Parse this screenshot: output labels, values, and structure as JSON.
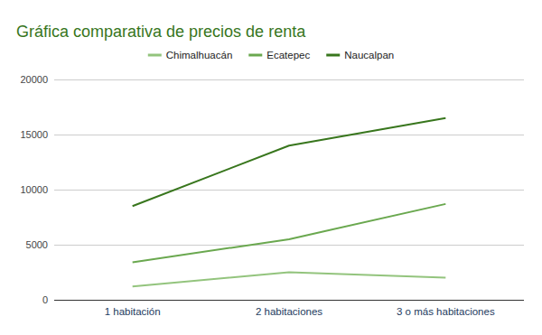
{
  "chart_data": {
    "type": "line",
    "title": "Gráfica comparativa de precios de renta",
    "categories": [
      "1 habitación",
      "2 habitaciones",
      "3 o más habitaciones"
    ],
    "series": [
      {
        "name": "Chimalhuacán",
        "color": "#93c47d",
        "values": [
          1200,
          2500,
          2000
        ]
      },
      {
        "name": "Ecatepec",
        "color": "#6aa84f",
        "values": [
          3400,
          5500,
          8700
        ]
      },
      {
        "name": "Naucalpan",
        "color": "#38761d",
        "values": [
          8500,
          14000,
          16500
        ]
      }
    ],
    "ylim": [
      0,
      20000
    ],
    "yticks": [
      0,
      5000,
      10000,
      15000,
      20000
    ],
    "grid": true,
    "legend": "top"
  }
}
